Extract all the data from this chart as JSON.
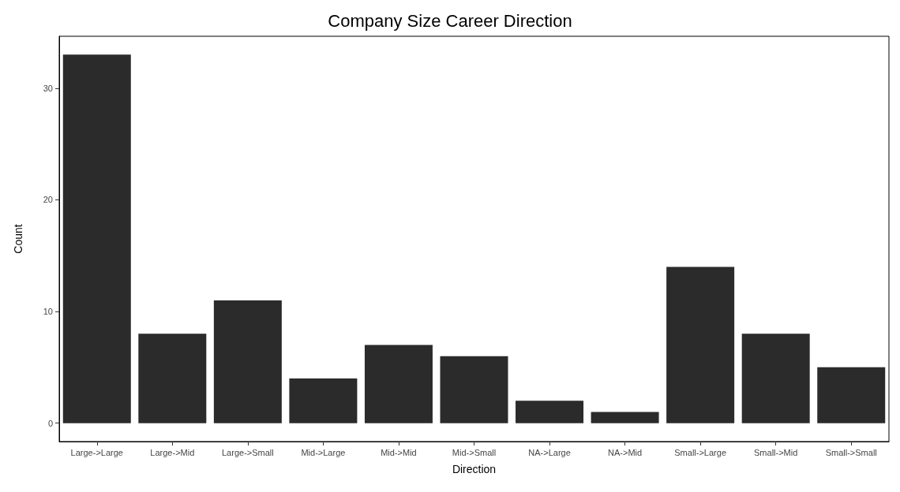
{
  "chart_data": {
    "type": "bar",
    "title": "Company Size Career Direction",
    "xlabel": "Direction",
    "ylabel": "Count",
    "categories": [
      "Large->Large",
      "Large->Mid",
      "Large->Small",
      "Mid->Large",
      "Mid->Mid",
      "Mid->Small",
      "NA->Large",
      "NA->Mid",
      "Small->Large",
      "Small->Mid",
      "Small->Small"
    ],
    "values": [
      33,
      8,
      11,
      4,
      7,
      6,
      2,
      1,
      14,
      8,
      5
    ],
    "color": "#2b2b2b",
    "ylim": [
      -1.65,
      34.65
    ],
    "yticks": [
      0,
      10,
      20,
      30
    ]
  }
}
